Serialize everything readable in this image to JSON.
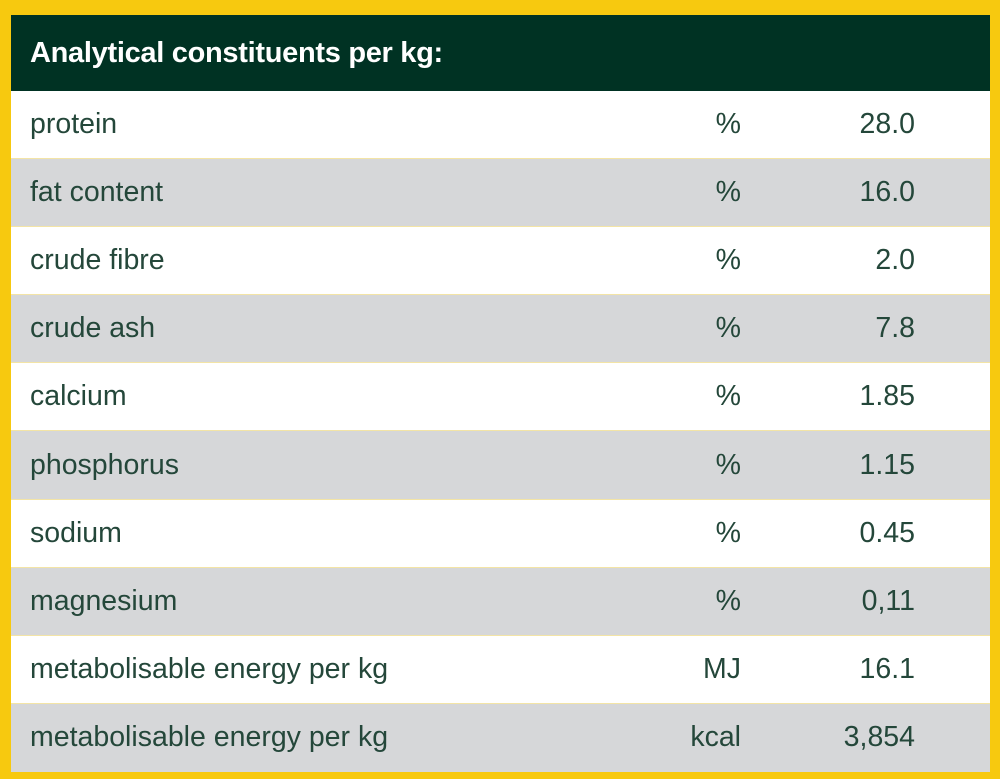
{
  "table": {
    "title": "Analytical constituents per kg:",
    "rows": [
      {
        "name": "protein",
        "unit": "%",
        "value": "28.0"
      },
      {
        "name": "fat content",
        "unit": "%",
        "value": "16.0"
      },
      {
        "name": "crude fibre",
        "unit": "%",
        "value": "2.0"
      },
      {
        "name": "crude ash",
        "unit": "%",
        "value": "7.8"
      },
      {
        "name": "calcium",
        "unit": "%",
        "value": "1.85"
      },
      {
        "name": "phosphorus",
        "unit": "%",
        "value": "1.15"
      },
      {
        "name": "sodium",
        "unit": "%",
        "value": "0.45"
      },
      {
        "name": "magnesium",
        "unit": "%",
        "value": "0,11"
      },
      {
        "name": "metabolisable energy per kg",
        "unit": "MJ",
        "value": "16.1"
      },
      {
        "name": "metabolisable energy per kg",
        "unit": "kcal",
        "value": "3,854"
      }
    ]
  },
  "colors": {
    "border": "#f7c90f",
    "header_bg": "#003223",
    "header_text": "#ffffff",
    "row_shaded": "#d6d7d9",
    "row_plain": "#ffffff",
    "row_text": "#24473a"
  }
}
